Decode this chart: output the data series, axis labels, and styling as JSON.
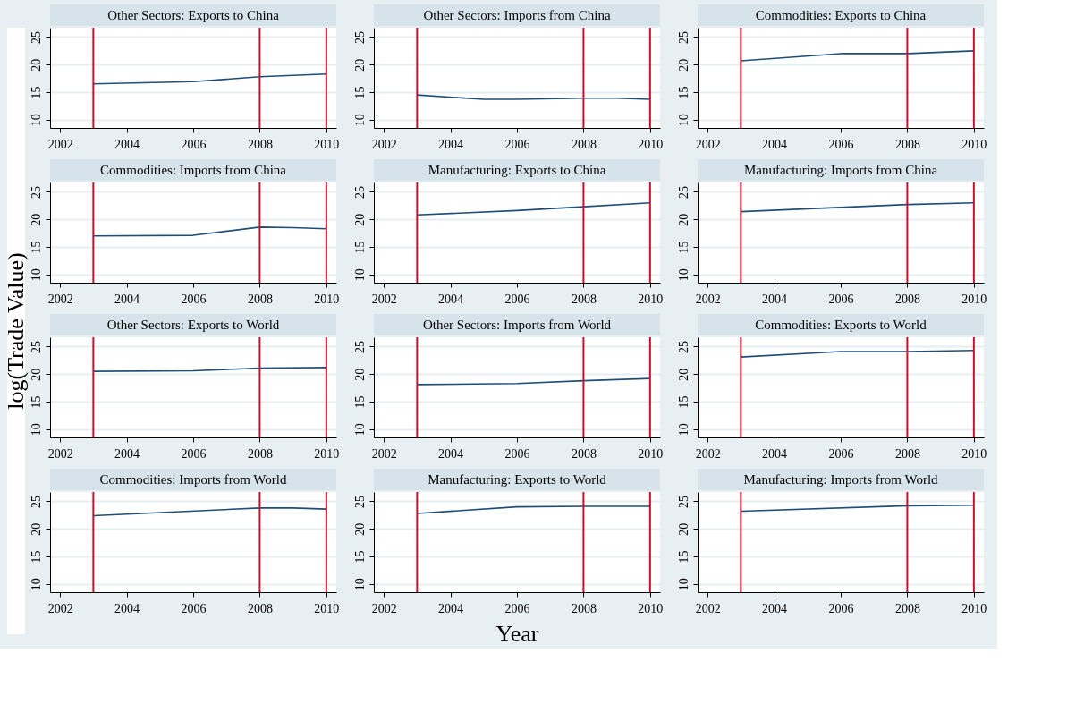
{
  "chart_data": [
    {
      "type": "line",
      "title": "Other Sectors: Exports to China",
      "x": [
        2003,
        2006,
        2008,
        2010
      ],
      "series": [
        {
          "color": "#1f4e79",
          "values": [
            16.5,
            16.9,
            17.8,
            18.3
          ]
        }
      ],
      "xlim": [
        2001.7,
        2010.3
      ],
      "ylim": [
        8.5,
        26.7
      ],
      "xticks": [
        2002,
        2004,
        2006,
        2008,
        2010
      ],
      "yticks": [
        10,
        15,
        20,
        25
      ],
      "grid": "y",
      "ref_lines": [
        {
          "axis": "x",
          "value": 2003,
          "color": "#c8102e"
        },
        {
          "axis": "x",
          "value": 2008,
          "color": "#c8102e"
        },
        {
          "axis": "x",
          "value": 2010,
          "color": "#c8102e"
        }
      ]
    },
    {
      "type": "line",
      "title": "Other Sectors: Imports from China",
      "x": [
        2003,
        2005,
        2006,
        2008,
        2009,
        2010
      ],
      "series": [
        {
          "color": "#1f4e79",
          "values": [
            14.5,
            13.7,
            13.7,
            13.9,
            13.9,
            13.7
          ]
        }
      ],
      "xlim": [
        2001.7,
        2010.3
      ],
      "ylim": [
        8.5,
        26.7
      ],
      "xticks": [
        2002,
        2004,
        2006,
        2008,
        2010
      ],
      "yticks": [
        10,
        15,
        20,
        25
      ],
      "grid": "y",
      "ref_lines": [
        {
          "axis": "x",
          "value": 2003,
          "color": "#c8102e"
        },
        {
          "axis": "x",
          "value": 2008,
          "color": "#c8102e"
        },
        {
          "axis": "x",
          "value": 2010,
          "color": "#c8102e"
        }
      ]
    },
    {
      "type": "line",
      "title": "Commodities: Exports to China",
      "x": [
        2003,
        2006,
        2008,
        2010
      ],
      "series": [
        {
          "color": "#1f4e79",
          "values": [
            20.7,
            22.0,
            22.0,
            22.5
          ]
        }
      ],
      "xlim": [
        2001.7,
        2010.3
      ],
      "ylim": [
        8.5,
        26.7
      ],
      "xticks": [
        2002,
        2004,
        2006,
        2008,
        2010
      ],
      "yticks": [
        10,
        15,
        20,
        25
      ],
      "grid": "y",
      "ref_lines": [
        {
          "axis": "x",
          "value": 2003,
          "color": "#c8102e"
        },
        {
          "axis": "x",
          "value": 2008,
          "color": "#c8102e"
        },
        {
          "axis": "x",
          "value": 2010,
          "color": "#c8102e"
        }
      ]
    },
    {
      "type": "line",
      "title": "Commodities: Imports from China",
      "x": [
        2003,
        2006,
        2008,
        2009,
        2010
      ],
      "series": [
        {
          "color": "#1f4e79",
          "values": [
            17.0,
            17.1,
            18.6,
            18.5,
            18.3
          ]
        }
      ],
      "xlim": [
        2001.7,
        2010.3
      ],
      "ylim": [
        8.5,
        26.7
      ],
      "xticks": [
        2002,
        2004,
        2006,
        2008,
        2010
      ],
      "yticks": [
        10,
        15,
        20,
        25
      ],
      "grid": "y",
      "ref_lines": [
        {
          "axis": "x",
          "value": 2003,
          "color": "#c8102e"
        },
        {
          "axis": "x",
          "value": 2008,
          "color": "#c8102e"
        },
        {
          "axis": "x",
          "value": 2010,
          "color": "#c8102e"
        }
      ]
    },
    {
      "type": "line",
      "title": "Manufacturing: Exports to China",
      "x": [
        2003,
        2006,
        2008,
        2010
      ],
      "series": [
        {
          "color": "#1f4e79",
          "values": [
            20.8,
            21.6,
            22.3,
            23.0
          ]
        }
      ],
      "xlim": [
        2001.7,
        2010.3
      ],
      "ylim": [
        8.5,
        26.7
      ],
      "xticks": [
        2002,
        2004,
        2006,
        2008,
        2010
      ],
      "yticks": [
        10,
        15,
        20,
        25
      ],
      "grid": "y",
      "ref_lines": [
        {
          "axis": "x",
          "value": 2003,
          "color": "#c8102e"
        },
        {
          "axis": "x",
          "value": 2008,
          "color": "#c8102e"
        },
        {
          "axis": "x",
          "value": 2010,
          "color": "#c8102e"
        }
      ]
    },
    {
      "type": "line",
      "title": "Manufacturing: Imports from China",
      "x": [
        2003,
        2008,
        2010
      ],
      "series": [
        {
          "color": "#1f4e79",
          "values": [
            21.4,
            22.7,
            23.0
          ]
        }
      ],
      "xlim": [
        2001.7,
        2010.3
      ],
      "ylim": [
        8.5,
        26.7
      ],
      "xticks": [
        2002,
        2004,
        2006,
        2008,
        2010
      ],
      "yticks": [
        10,
        15,
        20,
        25
      ],
      "grid": "y",
      "ref_lines": [
        {
          "axis": "x",
          "value": 2003,
          "color": "#c8102e"
        },
        {
          "axis": "x",
          "value": 2008,
          "color": "#c8102e"
        },
        {
          "axis": "x",
          "value": 2010,
          "color": "#c8102e"
        }
      ]
    },
    {
      "type": "line",
      "title": "Other Sectors: Exports to World",
      "ylabel": "log(Trade Value)",
      "x": [
        2003,
        2006,
        2008,
        2010
      ],
      "series": [
        {
          "color": "#1f4e79",
          "values": [
            20.5,
            20.6,
            21.1,
            21.2
          ]
        }
      ],
      "xlim": [
        2001.7,
        2010.3
      ],
      "ylim": [
        8.5,
        26.7
      ],
      "xticks": [
        2002,
        2004,
        2006,
        2008,
        2010
      ],
      "yticks": [
        10,
        15,
        20,
        25
      ],
      "grid": "y",
      "ref_lines": [
        {
          "axis": "x",
          "value": 2003,
          "color": "#c8102e"
        },
        {
          "axis": "x",
          "value": 2008,
          "color": "#c8102e"
        },
        {
          "axis": "x",
          "value": 2010,
          "color": "#c8102e"
        }
      ]
    },
    {
      "type": "line",
      "title": "Other Sectors: Imports from World",
      "x": [
        2003,
        2006,
        2008,
        2010
      ],
      "series": [
        {
          "color": "#1f4e79",
          "values": [
            18.1,
            18.3,
            18.8,
            19.2
          ]
        }
      ],
      "xlim": [
        2001.7,
        2010.3
      ],
      "ylim": [
        8.5,
        26.7
      ],
      "xticks": [
        2002,
        2004,
        2006,
        2008,
        2010
      ],
      "yticks": [
        10,
        15,
        20,
        25
      ],
      "grid": "y",
      "ref_lines": [
        {
          "axis": "x",
          "value": 2003,
          "color": "#c8102e"
        },
        {
          "axis": "x",
          "value": 2008,
          "color": "#c8102e"
        },
        {
          "axis": "x",
          "value": 2010,
          "color": "#c8102e"
        }
      ]
    },
    {
      "type": "line",
      "title": "Commodities: Exports to World",
      "x": [
        2003,
        2006,
        2008,
        2010
      ],
      "series": [
        {
          "color": "#1f4e79",
          "values": [
            23.1,
            24.1,
            24.1,
            24.3
          ]
        }
      ],
      "xlim": [
        2001.7,
        2010.3
      ],
      "ylim": [
        8.5,
        26.7
      ],
      "xticks": [
        2002,
        2004,
        2006,
        2008,
        2010
      ],
      "yticks": [
        10,
        15,
        20,
        25
      ],
      "grid": "y",
      "ref_lines": [
        {
          "axis": "x",
          "value": 2003,
          "color": "#c8102e"
        },
        {
          "axis": "x",
          "value": 2008,
          "color": "#c8102e"
        },
        {
          "axis": "x",
          "value": 2010,
          "color": "#c8102e"
        }
      ]
    },
    {
      "type": "line",
      "title": "Commodities: Imports from World",
      "x": [
        2003,
        2008,
        2009,
        2010
      ],
      "series": [
        {
          "color": "#1f4e79",
          "values": [
            22.4,
            23.8,
            23.8,
            23.6
          ]
        }
      ],
      "xlim": [
        2001.7,
        2010.3
      ],
      "ylim": [
        8.5,
        26.7
      ],
      "xticks": [
        2002,
        2004,
        2006,
        2008,
        2010
      ],
      "yticks": [
        10,
        15,
        20,
        25
      ],
      "grid": "y",
      "ref_lines": [
        {
          "axis": "x",
          "value": 2003,
          "color": "#c8102e"
        },
        {
          "axis": "x",
          "value": 2008,
          "color": "#c8102e"
        },
        {
          "axis": "x",
          "value": 2010,
          "color": "#c8102e"
        }
      ]
    },
    {
      "type": "line",
      "title": "Manufacturing: Exports to World",
      "xlabel": "Year",
      "x": [
        2003,
        2006,
        2008,
        2010
      ],
      "series": [
        {
          "color": "#1f4e79",
          "values": [
            22.8,
            24.0,
            24.1,
            24.1
          ]
        }
      ],
      "xlim": [
        2001.7,
        2010.3
      ],
      "ylim": [
        8.5,
        26.7
      ],
      "xticks": [
        2002,
        2004,
        2006,
        2008,
        2010
      ],
      "yticks": [
        10,
        15,
        20,
        25
      ],
      "grid": "y",
      "ref_lines": [
        {
          "axis": "x",
          "value": 2003,
          "color": "#c8102e"
        },
        {
          "axis": "x",
          "value": 2008,
          "color": "#c8102e"
        },
        {
          "axis": "x",
          "value": 2010,
          "color": "#c8102e"
        }
      ]
    },
    {
      "type": "line",
      "title": "Manufacturing: Imports from World",
      "x": [
        2003,
        2008,
        2010
      ],
      "series": [
        {
          "color": "#1f4e79",
          "values": [
            23.2,
            24.2,
            24.3
          ]
        }
      ],
      "xlim": [
        2001.7,
        2010.3
      ],
      "ylim": [
        8.5,
        26.7
      ],
      "xticks": [
        2002,
        2004,
        2006,
        2008,
        2010
      ],
      "yticks": [
        10,
        15,
        20,
        25
      ],
      "grid": "y",
      "ref_lines": [
        {
          "axis": "x",
          "value": 2003,
          "color": "#c8102e"
        },
        {
          "axis": "x",
          "value": 2008,
          "color": "#c8102e"
        },
        {
          "axis": "x",
          "value": 2010,
          "color": "#c8102e"
        }
      ]
    }
  ]
}
